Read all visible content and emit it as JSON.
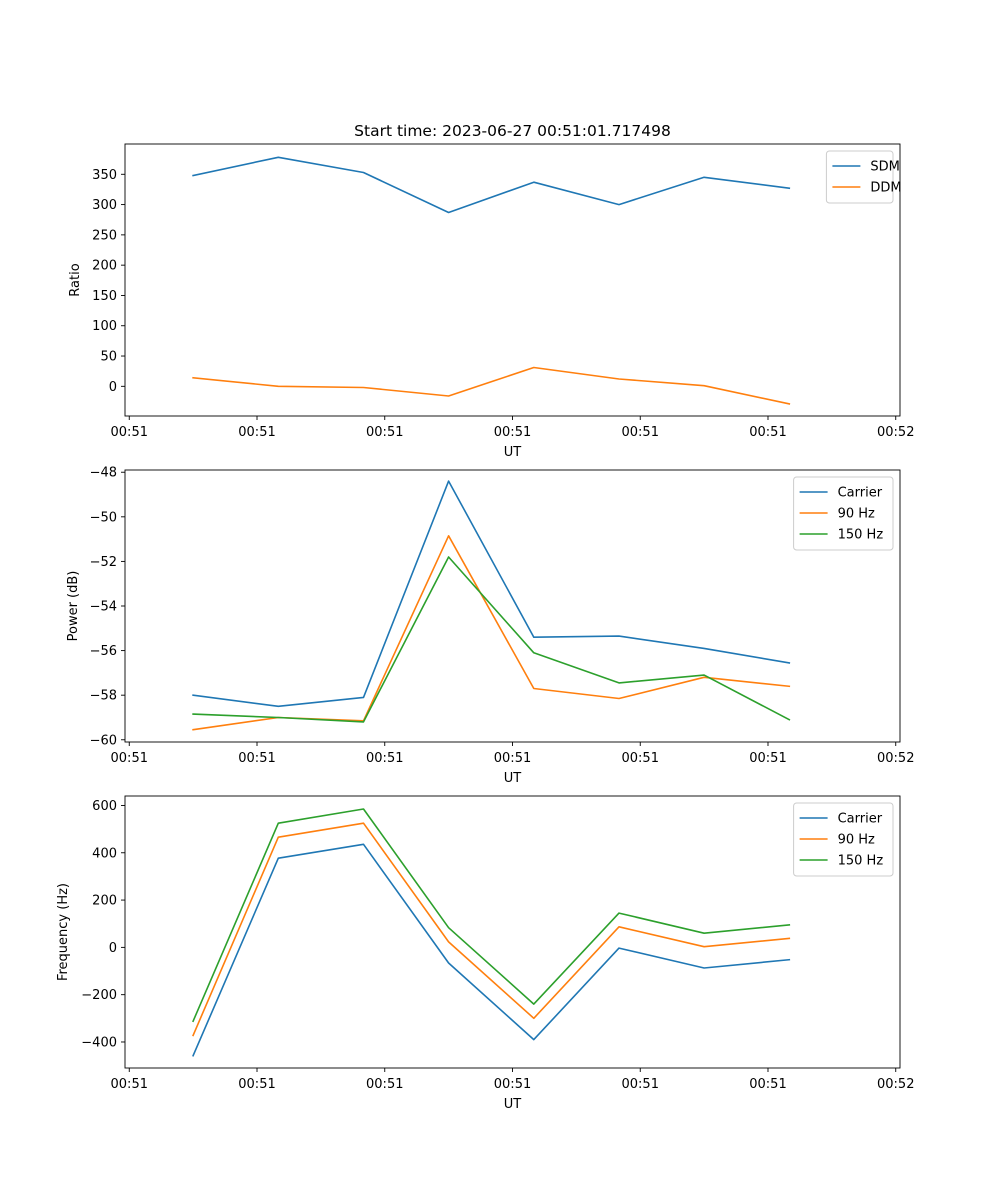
{
  "chart_data": [
    {
      "type": "line",
      "title": "Start time: 2023-06-27 00:51:01.717498",
      "xlabel": "UT",
      "ylabel": "Ratio",
      "x": [
        1,
        2,
        3,
        4,
        5,
        6,
        7,
        8
      ],
      "x_tick_values": [
        0.25,
        1.75,
        3.25,
        4.75,
        6.25,
        7.75,
        9.25
      ],
      "x_tick_labels": [
        "00:51",
        "00:51",
        "00:51",
        "00:51",
        "00:51",
        "00:51",
        "00:52"
      ],
      "xlim": [
        0.2,
        9.3
      ],
      "ylim": [
        -49,
        400
      ],
      "y_ticks": [
        0,
        50,
        100,
        150,
        200,
        250,
        300,
        350
      ],
      "legend": "top-right",
      "series": [
        {
          "name": "SDM",
          "color": "#1f77b4",
          "values": [
            348,
            378,
            353,
            287,
            337,
            300,
            345,
            327
          ]
        },
        {
          "name": "DDM",
          "color": "#ff7f0e",
          "values": [
            14,
            0,
            -2,
            -16,
            31,
            12,
            1,
            -29
          ]
        }
      ]
    },
    {
      "type": "line",
      "title": "",
      "xlabel": "UT",
      "ylabel": "Power (dB)",
      "x": [
        1,
        2,
        3,
        4,
        5,
        6,
        7,
        8
      ],
      "x_tick_values": [
        0.25,
        1.75,
        3.25,
        4.75,
        6.25,
        7.75,
        9.25
      ],
      "x_tick_labels": [
        "00:51",
        "00:51",
        "00:51",
        "00:51",
        "00:51",
        "00:51",
        "00:52"
      ],
      "xlim": [
        0.2,
        9.3
      ],
      "ylim": [
        -60.1,
        -47.9
      ],
      "y_ticks": [
        -60,
        -58,
        -56,
        -54,
        -52,
        -50,
        -48
      ],
      "legend": "top-right",
      "series": [
        {
          "name": "Carrier",
          "color": "#1f77b4",
          "values": [
            -58.0,
            -58.5,
            -58.1,
            -48.4,
            -55.4,
            -55.35,
            -55.9,
            -56.55
          ]
        },
        {
          "name": "90 Hz",
          "color": "#ff7f0e",
          "values": [
            -59.55,
            -59.0,
            -59.15,
            -50.85,
            -57.7,
            -58.15,
            -57.2,
            -57.6
          ]
        },
        {
          "name": "150 Hz",
          "color": "#2ca02c",
          "values": [
            -58.85,
            -59.0,
            -59.2,
            -51.8,
            -56.1,
            -57.45,
            -57.1,
            -59.1
          ]
        }
      ]
    },
    {
      "type": "line",
      "title": "",
      "xlabel": "UT",
      "ylabel": "Frequency (Hz)",
      "x": [
        1,
        2,
        3,
        4,
        5,
        6,
        7,
        8
      ],
      "x_tick_values": [
        0.25,
        1.75,
        3.25,
        4.75,
        6.25,
        7.75,
        9.25
      ],
      "x_tick_labels": [
        "00:51",
        "00:51",
        "00:51",
        "00:51",
        "00:51",
        "00:51",
        "00:52"
      ],
      "xlim": [
        0.2,
        9.3
      ],
      "ylim": [
        -510,
        640
      ],
      "y_ticks": [
        -400,
        -200,
        0,
        200,
        400,
        600
      ],
      "legend": "top-right",
      "series": [
        {
          "name": "Carrier",
          "color": "#1f77b4",
          "values": [
            -458,
            377,
            436,
            -66,
            -390,
            -3,
            -87,
            -52
          ]
        },
        {
          "name": "90 Hz",
          "color": "#ff7f0e",
          "values": [
            -372,
            466,
            525,
            23,
            -300,
            87,
            3,
            38
          ]
        },
        {
          "name": "150 Hz",
          "color": "#2ca02c",
          "values": [
            -312,
            525,
            585,
            83,
            -240,
            145,
            60,
            95
          ]
        }
      ]
    }
  ]
}
